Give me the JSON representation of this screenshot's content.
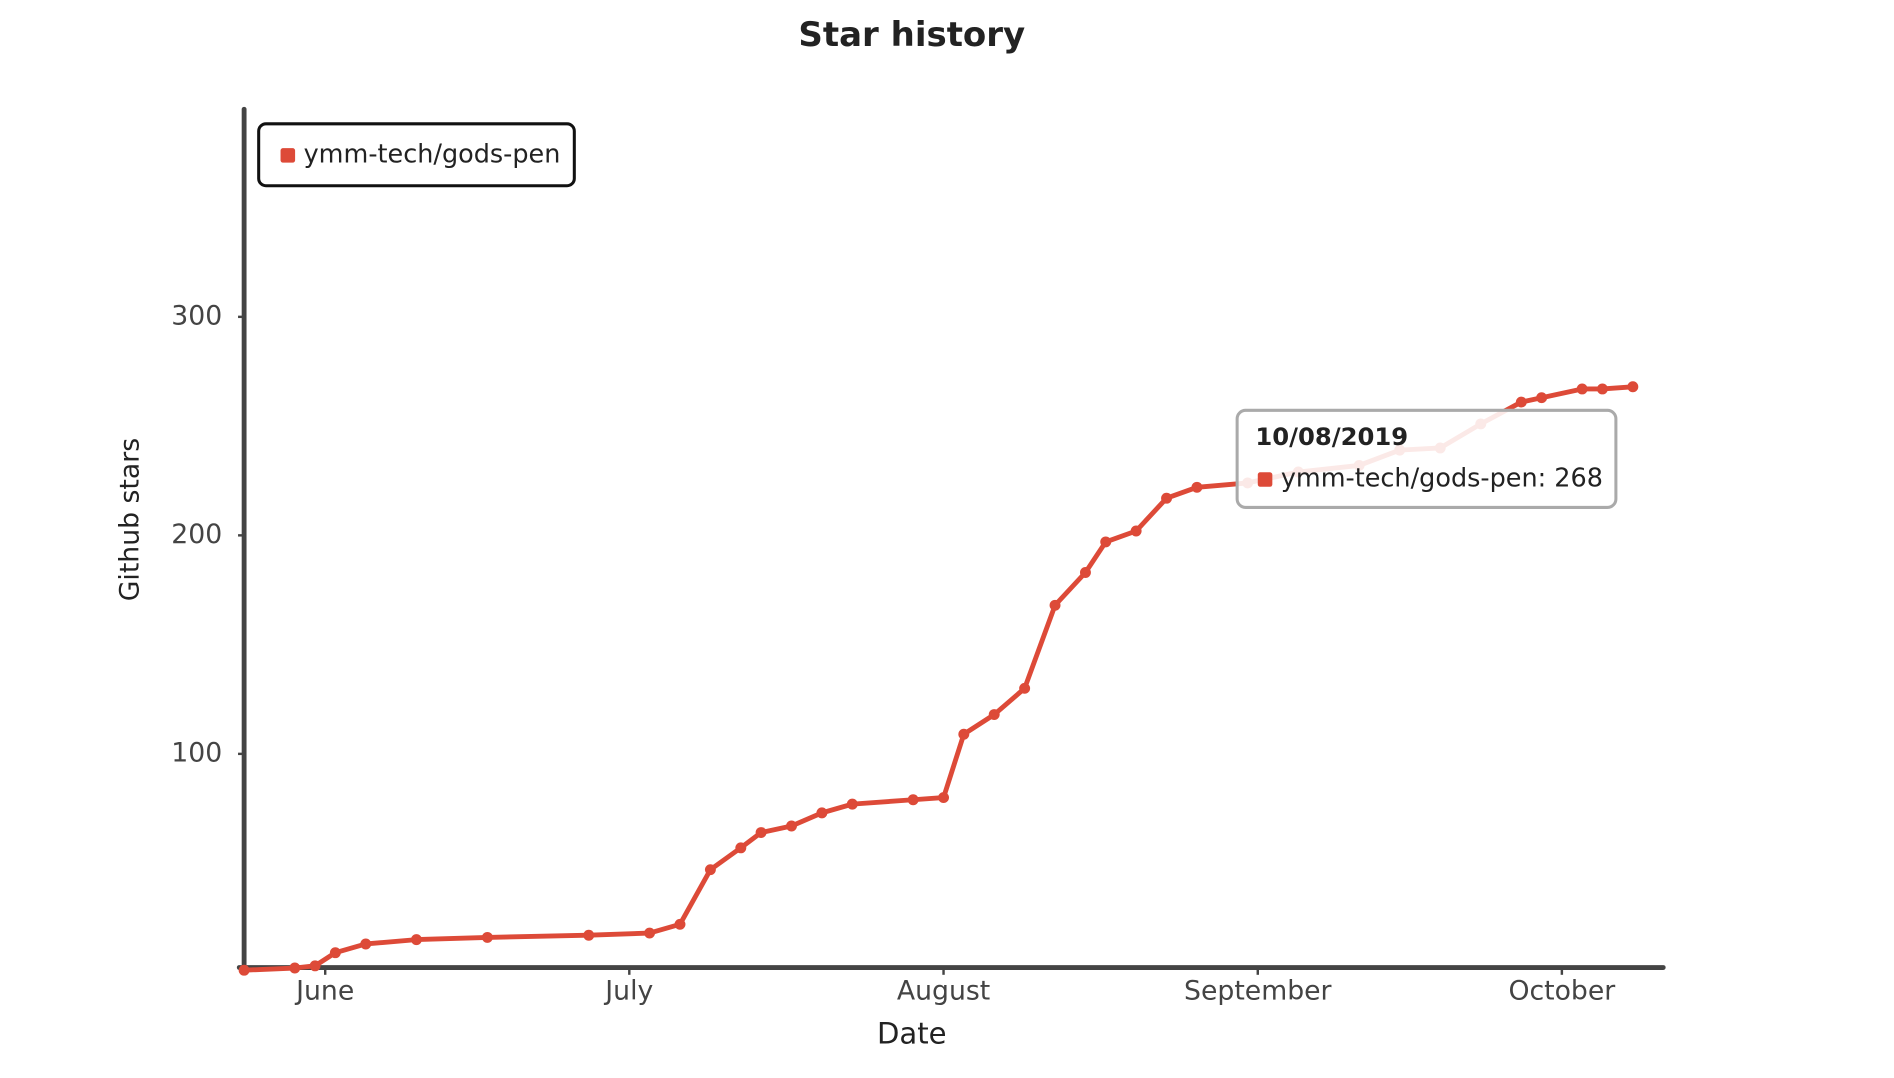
{
  "chart_data": {
    "type": "line",
    "title": "Star history",
    "x_label": "Date",
    "y_label": "Github stars",
    "x": [
      "05/24/2019",
      "05/29/2019",
      "05/31/2019",
      "06/02/2019",
      "06/05/2019",
      "06/10/2019",
      "06/17/2019",
      "06/27/2019",
      "07/03/2019",
      "07/06/2019",
      "07/09/2019",
      "07/12/2019",
      "07/14/2019",
      "07/17/2019",
      "07/20/2019",
      "07/23/2019",
      "07/29/2019",
      "08/01/2019",
      "08/03/2019",
      "08/06/2019",
      "08/09/2019",
      "08/12/2019",
      "08/15/2019",
      "08/17/2019",
      "08/20/2019",
      "08/23/2019",
      "08/26/2019",
      "08/31/2019",
      "09/05/2019",
      "09/11/2019",
      "09/15/2019",
      "09/19/2019",
      "09/23/2019",
      "09/27/2019",
      "09/29/2019",
      "10/03/2019",
      "10/05/2019",
      "10/08/2019"
    ],
    "series": [
      {
        "name": "ymm-tech/gods-pen",
        "color": "#dd4a38",
        "values": [
          1,
          2,
          3,
          9,
          13,
          15,
          16,
          17,
          18,
          22,
          47,
          57,
          64,
          67,
          73,
          77,
          79,
          80,
          109,
          118,
          130,
          168,
          183,
          197,
          202,
          217,
          222,
          224,
          229,
          232,
          239,
          240,
          251,
          261,
          263,
          267,
          267,
          268
        ]
      }
    ],
    "xlim": [
      "05/24/2019",
      "10/11/2019"
    ],
    "xticks": [
      {
        "value": "06/01/2019",
        "label": "June"
      },
      {
        "value": "07/01/2019",
        "label": "July"
      },
      {
        "value": "08/01/2019",
        "label": "August"
      },
      {
        "value": "09/01/2019",
        "label": "September"
      },
      {
        "value": "10/01/2019",
        "label": "October"
      }
    ],
    "ylim": [
      0,
      395
    ],
    "yticks": [
      100,
      200,
      300
    ],
    "legend": "top-left",
    "tooltip": {
      "date": "10/08/2019",
      "text": "ymm-tech/gods-pen: 268"
    }
  }
}
